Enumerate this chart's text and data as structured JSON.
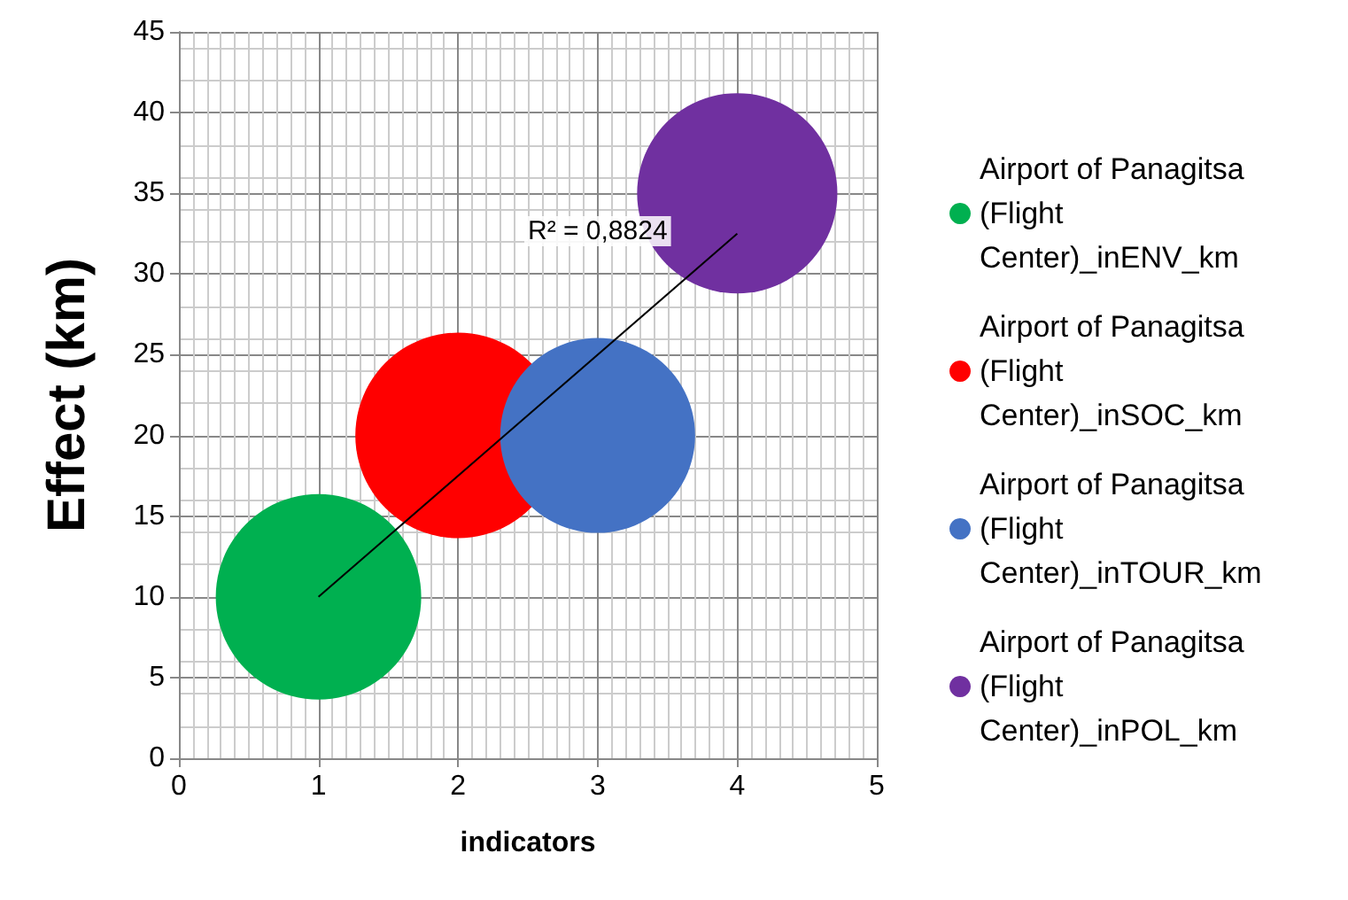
{
  "chart_data": {
    "type": "bubble",
    "xlabel": "indicators",
    "ylabel": "Effect (km)",
    "xlim": [
      0,
      5
    ],
    "xticks": [
      0,
      1,
      2,
      3,
      4,
      5
    ],
    "ylim": [
      0,
      45
    ],
    "yticks": [
      0,
      5,
      10,
      15,
      20,
      25,
      30,
      35,
      40,
      45
    ],
    "grid": true,
    "legend": "right",
    "annotations": [
      "R² = 0,8824"
    ],
    "series": [
      {
        "name": "Airport of Panagitsa (Flight Center)_inENV_km",
        "color": "#00b050",
        "x": [
          1
        ],
        "values": [
          10
        ],
        "sizes": [
          1
        ]
      },
      {
        "name": "Airport of Panagitsa (Flight Center)_inSOC_km",
        "color": "#ff0000",
        "x": [
          2
        ],
        "values": [
          20
        ],
        "sizes": [
          1
        ]
      },
      {
        "name": "Airport of Panagitsa (Flight Center)_inTOUR_km",
        "color": "#4472c4",
        "x": [
          3
        ],
        "values": [
          20
        ],
        "sizes": [
          0.9
        ]
      },
      {
        "name": "Airport of Panagitsa (Flight Center)_inPOL_km",
        "color": "#7030a0",
        "x": [
          4
        ],
        "values": [
          35
        ],
        "sizes": [
          0.95
        ]
      },
      {
        "type": "line",
        "color": "#000000",
        "marker": "none",
        "x": [
          1,
          4
        ],
        "values": [
          10,
          32.5
        ]
      }
    ]
  }
}
